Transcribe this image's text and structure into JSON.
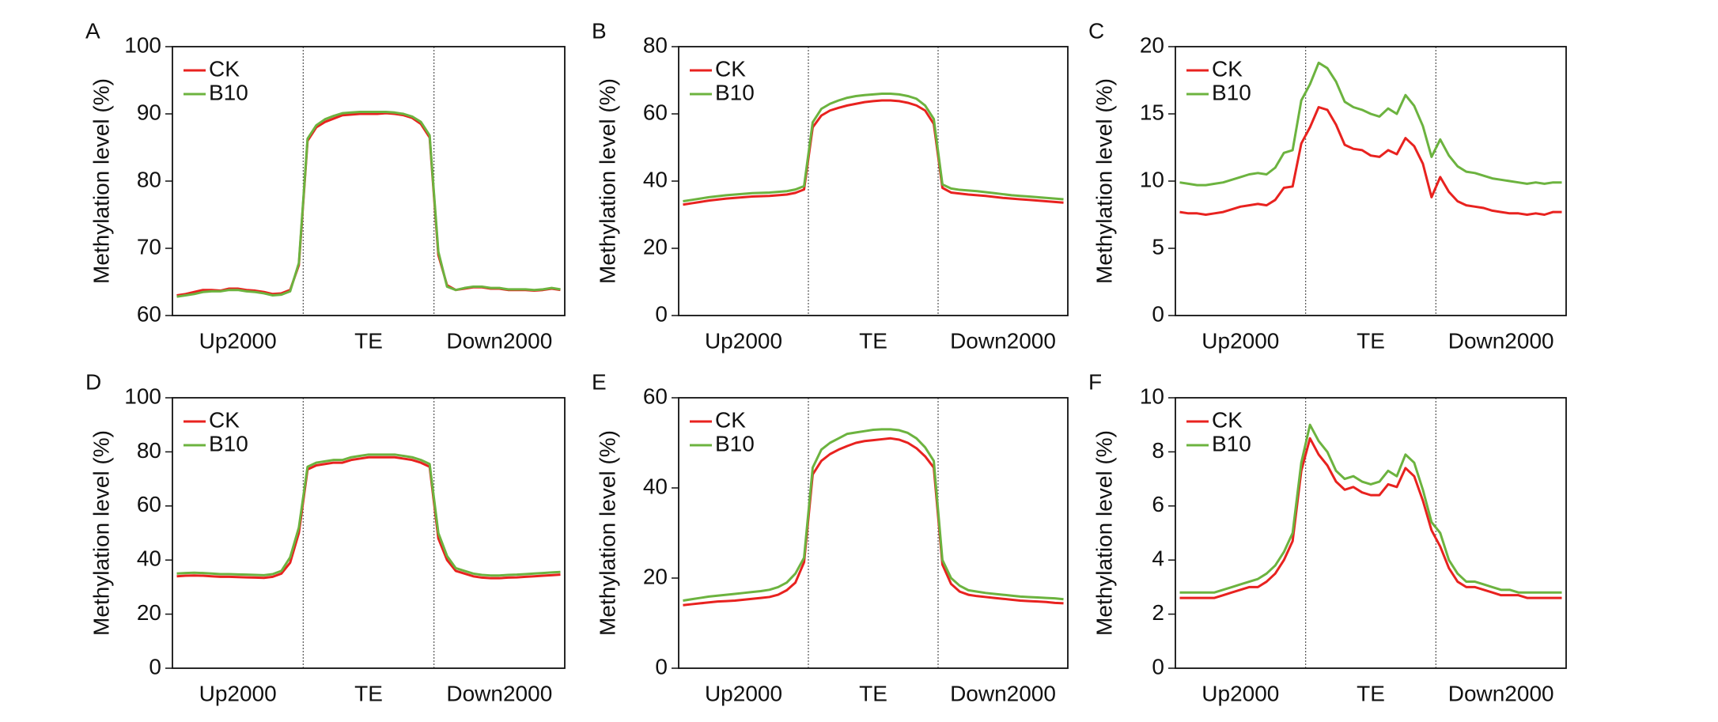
{
  "chart_data": [
    {
      "type": "line",
      "label": "A",
      "y_label": "Methylation level (%)",
      "regions": [
        "Up2000",
        "TE",
        "Down2000"
      ],
      "ylim": [
        60,
        100
      ],
      "yticks": [
        60,
        70,
        80,
        90,
        100
      ],
      "legend": "upper left",
      "series": [
        {
          "name": "CK",
          "color": "#e8221f",
          "values": [
            63,
            63.2,
            63.5,
            63.8,
            63.8,
            63.7,
            64,
            64,
            63.8,
            63.7,
            63.5,
            63.2,
            63.3,
            63.8,
            67.5,
            86,
            88,
            88.8,
            89.3,
            89.8,
            89.9,
            90,
            90,
            90,
            90.1,
            90,
            89.8,
            89.4,
            88.5,
            86.5,
            69,
            64.5,
            63.8,
            64,
            64.2,
            64.2,
            64,
            64,
            63.8,
            63.8,
            63.8,
            63.7,
            63.8,
            64,
            63.8
          ]
        },
        {
          "name": "B10",
          "color": "#6cb33f",
          "values": [
            62.8,
            63,
            63.2,
            63.5,
            63.6,
            63.6,
            63.8,
            63.8,
            63.6,
            63.5,
            63.3,
            63,
            63.1,
            63.6,
            67.8,
            86.3,
            88.3,
            89.2,
            89.7,
            90.1,
            90.2,
            90.3,
            90.3,
            90.3,
            90.3,
            90.2,
            90,
            89.6,
            88.8,
            86.8,
            69.5,
            64.3,
            63.8,
            64.1,
            64.3,
            64.3,
            64.1,
            64.1,
            63.9,
            63.9,
            63.9,
            63.8,
            63.9,
            64.1,
            63.9
          ]
        }
      ]
    },
    {
      "type": "line",
      "label": "B",
      "y_label": "Methylation level (%)",
      "regions": [
        "Up2000",
        "TE",
        "Down2000"
      ],
      "ylim": [
        0,
        80
      ],
      "yticks": [
        0,
        20,
        40,
        60,
        80
      ],
      "legend": "upper left",
      "series": [
        {
          "name": "CK",
          "color": "#e8221f",
          "values": [
            33,
            33.4,
            33.8,
            34.2,
            34.5,
            34.8,
            35,
            35.2,
            35.4,
            35.5,
            35.6,
            35.8,
            36,
            36.5,
            37.5,
            56,
            59.5,
            61,
            61.8,
            62.5,
            63,
            63.5,
            63.8,
            64,
            64,
            63.8,
            63.3,
            62.5,
            61,
            57,
            38,
            36.6,
            36.3,
            36,
            35.8,
            35.6,
            35.3,
            35,
            34.8,
            34.6,
            34.4,
            34.2,
            34,
            33.8,
            33.6
          ]
        },
        {
          "name": "B10",
          "color": "#6cb33f",
          "values": [
            34,
            34.4,
            34.8,
            35.2,
            35.5,
            35.8,
            36,
            36.2,
            36.4,
            36.5,
            36.6,
            36.8,
            37,
            37.5,
            38.5,
            57.5,
            61.5,
            63,
            64,
            64.8,
            65.3,
            65.6,
            65.8,
            66,
            66,
            65.8,
            65.3,
            64.5,
            62.5,
            58.5,
            39,
            37.8,
            37.4,
            37.2,
            37,
            36.7,
            36.4,
            36.1,
            35.8,
            35.6,
            35.4,
            35.2,
            35,
            34.8,
            34.6
          ]
        }
      ]
    },
    {
      "type": "line",
      "label": "C",
      "y_label": "Methylation level (%)",
      "regions": [
        "Up2000",
        "TE",
        "Down2000"
      ],
      "ylim": [
        0,
        20
      ],
      "yticks": [
        0,
        5,
        10,
        15,
        20
      ],
      "legend": "upper left",
      "series": [
        {
          "name": "CK",
          "color": "#e8221f",
          "values": [
            7.7,
            7.6,
            7.6,
            7.5,
            7.6,
            7.7,
            7.9,
            8.1,
            8.2,
            8.3,
            8.2,
            8.6,
            9.5,
            9.6,
            12.8,
            14,
            15.5,
            15.3,
            14.2,
            12.7,
            12.4,
            12.3,
            11.9,
            11.8,
            12.3,
            12.0,
            13.2,
            12.6,
            11.3,
            8.8,
            10.3,
            9.2,
            8.5,
            8.2,
            8.1,
            8.0,
            7.8,
            7.7,
            7.6,
            7.6,
            7.5,
            7.6,
            7.5,
            7.7,
            7.7
          ]
        },
        {
          "name": "B10",
          "color": "#6cb33f",
          "values": [
            9.9,
            9.8,
            9.7,
            9.7,
            9.8,
            9.9,
            10.1,
            10.3,
            10.5,
            10.6,
            10.5,
            11.0,
            12.1,
            12.3,
            16,
            17.2,
            18.8,
            18.4,
            17.4,
            15.9,
            15.5,
            15.3,
            15.0,
            14.8,
            15.4,
            15.0,
            16.4,
            15.6,
            14.1,
            11.8,
            13.1,
            11.9,
            11.1,
            10.7,
            10.6,
            10.4,
            10.2,
            10.1,
            10.0,
            9.9,
            9.8,
            9.9,
            9.8,
            9.9,
            9.9
          ]
        }
      ]
    },
    {
      "type": "line",
      "label": "D",
      "y_label": "Methylation level (%)",
      "regions": [
        "Up2000",
        "TE",
        "Down2000"
      ],
      "ylim": [
        0,
        100
      ],
      "yticks": [
        0,
        20,
        40,
        60,
        80,
        100
      ],
      "legend": "upper left",
      "series": [
        {
          "name": "CK",
          "color": "#e8221f",
          "values": [
            34,
            34.2,
            34.3,
            34.2,
            34,
            33.8,
            33.8,
            33.7,
            33.6,
            33.5,
            33.4,
            33.8,
            35,
            39,
            50,
            73.5,
            75,
            75.5,
            76,
            76,
            77,
            77.5,
            78,
            78,
            78,
            78,
            77.5,
            77,
            76,
            74.5,
            48,
            40,
            36,
            35,
            34,
            33.5,
            33.3,
            33.3,
            33.5,
            33.6,
            33.8,
            34,
            34.2,
            34.4,
            34.6
          ]
        },
        {
          "name": "B10",
          "color": "#6cb33f",
          "values": [
            35,
            35.2,
            35.3,
            35.2,
            35,
            34.8,
            34.8,
            34.7,
            34.6,
            34.5,
            34.4,
            34.8,
            36,
            41,
            52,
            74.5,
            76,
            76.5,
            77,
            77,
            78,
            78.5,
            79,
            79,
            79,
            79,
            78.5,
            78,
            77,
            75.5,
            50,
            41.5,
            37,
            36,
            35,
            34.5,
            34.3,
            34.3,
            34.5,
            34.6,
            34.8,
            35,
            35.2,
            35.4,
            35.6
          ]
        }
      ]
    },
    {
      "type": "line",
      "label": "E",
      "y_label": "Methylation level (%)",
      "regions": [
        "Up2000",
        "TE",
        "Down2000"
      ],
      "ylim": [
        0,
        60
      ],
      "yticks": [
        0,
        20,
        40,
        60
      ],
      "legend": "upper left",
      "series": [
        {
          "name": "CK",
          "color": "#e8221f",
          "values": [
            14,
            14.2,
            14.4,
            14.6,
            14.8,
            14.9,
            15,
            15.2,
            15.4,
            15.6,
            15.8,
            16.3,
            17.3,
            19,
            23.5,
            43,
            46,
            47.5,
            48.5,
            49.3,
            50,
            50.4,
            50.6,
            50.8,
            51,
            50.7,
            50,
            48.8,
            47,
            44.5,
            23,
            18.7,
            17,
            16.3,
            16,
            15.8,
            15.6,
            15.4,
            15.2,
            15,
            14.9,
            14.8,
            14.7,
            14.5,
            14.4
          ]
        },
        {
          "name": "B10",
          "color": "#6cb33f",
          "values": [
            15,
            15.3,
            15.6,
            15.9,
            16.1,
            16.3,
            16.5,
            16.7,
            16.9,
            17.1,
            17.4,
            18,
            19,
            21,
            24.5,
            44.5,
            48.5,
            50,
            51,
            52,
            52.3,
            52.6,
            52.9,
            53,
            53,
            52.8,
            52.2,
            51,
            49,
            46,
            24,
            20,
            18.3,
            17.3,
            17,
            16.7,
            16.5,
            16.3,
            16.1,
            15.9,
            15.8,
            15.7,
            15.6,
            15.5,
            15.3
          ]
        }
      ]
    },
    {
      "type": "line",
      "label": "F",
      "y_label": "Methylation level (%)",
      "regions": [
        "Up2000",
        "TE",
        "Down2000"
      ],
      "ylim": [
        0,
        10
      ],
      "yticks": [
        0,
        2,
        4,
        6,
        8,
        10
      ],
      "legend": "upper left",
      "series": [
        {
          "name": "CK",
          "color": "#e8221f",
          "values": [
            2.6,
            2.6,
            2.6,
            2.6,
            2.6,
            2.7,
            2.8,
            2.9,
            3.0,
            3.0,
            3.2,
            3.5,
            4.0,
            4.7,
            7.3,
            8.5,
            7.9,
            7.5,
            6.9,
            6.6,
            6.7,
            6.5,
            6.4,
            6.4,
            6.8,
            6.7,
            7.4,
            7.1,
            6.2,
            5.1,
            4.5,
            3.7,
            3.2,
            3.0,
            3.0,
            2.9,
            2.8,
            2.7,
            2.7,
            2.7,
            2.6,
            2.6,
            2.6,
            2.6,
            2.6
          ]
        },
        {
          "name": "B10",
          "color": "#6cb33f",
          "values": [
            2.8,
            2.8,
            2.8,
            2.8,
            2.8,
            2.9,
            3.0,
            3.1,
            3.2,
            3.3,
            3.5,
            3.8,
            4.3,
            5.0,
            7.6,
            9.0,
            8.4,
            8.0,
            7.3,
            7.0,
            7.1,
            6.9,
            6.8,
            6.9,
            7.3,
            7.1,
            7.9,
            7.6,
            6.6,
            5.4,
            5.0,
            4.0,
            3.5,
            3.2,
            3.2,
            3.1,
            3.0,
            2.9,
            2.9,
            2.8,
            2.8,
            2.8,
            2.8,
            2.8,
            2.8
          ]
        }
      ]
    }
  ]
}
